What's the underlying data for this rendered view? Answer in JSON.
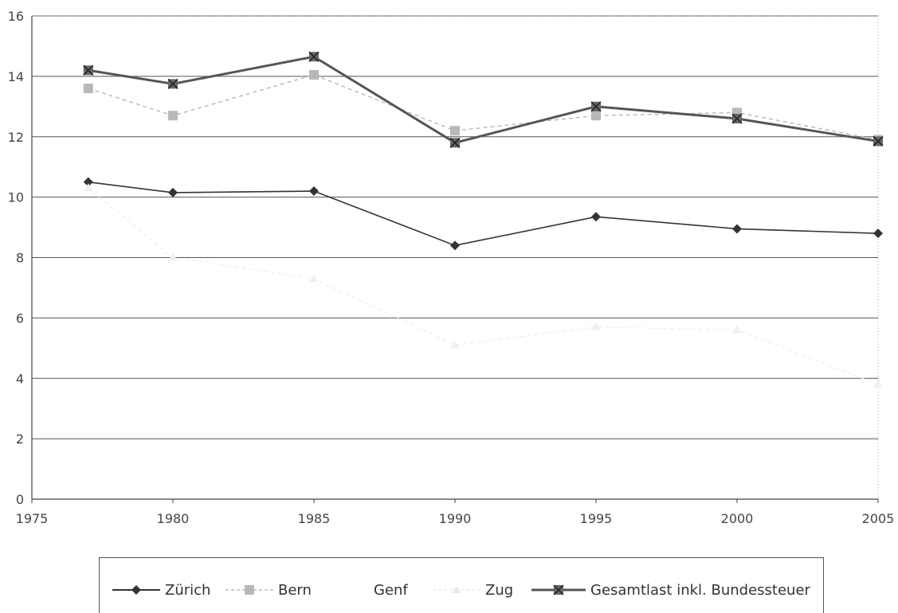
{
  "chart_data": {
    "type": "line",
    "title": "",
    "xlabel": "",
    "ylabel": "",
    "x": [
      1977,
      1980,
      1985,
      1990,
      1995,
      2000,
      2005
    ],
    "xlim": [
      1975,
      2005
    ],
    "ylim": [
      0,
      16
    ],
    "xticks": [
      "1975",
      "1980",
      "1985",
      "1990",
      "1995",
      "2000",
      "2005"
    ],
    "yticks": [
      "0",
      "2",
      "4",
      "6",
      "8",
      "10",
      "12",
      "14",
      "16"
    ],
    "grid": "horizontal",
    "legend_position": "bottom",
    "series": [
      {
        "name": "Zürich",
        "values": [
          10.5,
          10.15,
          10.2,
          8.4,
          9.35,
          8.95,
          8.8
        ],
        "color": "#333333",
        "marker": "diamond"
      },
      {
        "name": "Bern",
        "values": [
          13.6,
          12.7,
          14.05,
          12.2,
          12.7,
          12.8,
          11.9
        ],
        "color": "#b8b8b8",
        "marker": "square"
      },
      {
        "name": "Genf",
        "values": [
          null,
          null,
          null,
          null,
          null,
          null,
          null
        ],
        "color": "#ffffff",
        "marker": "none"
      },
      {
        "name": "Zug",
        "values": [
          10.3,
          8.0,
          7.3,
          5.1,
          5.7,
          5.6,
          3.8
        ],
        "color": "#f0f0f0",
        "marker": "triangle"
      },
      {
        "name": "Gesamtlast inkl. Bundessteuer",
        "values": [
          14.2,
          13.75,
          14.65,
          11.8,
          13.0,
          12.6,
          11.85
        ],
        "color": "#555555",
        "marker": "x-square"
      }
    ]
  }
}
